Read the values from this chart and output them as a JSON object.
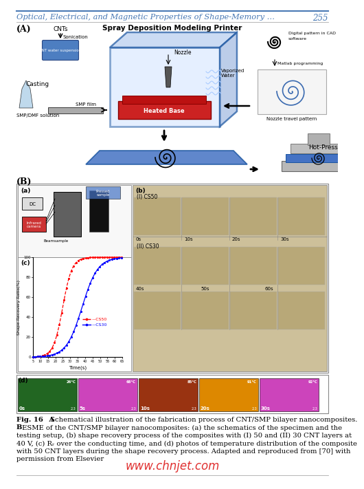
{
  "page_title": "Optical, Electrical, and Magnetic Properties of Shape-Memory …",
  "page_number": "255",
  "watermark": "www.chnjet.com",
  "bg_color": "#ffffff",
  "title_color": "#4a7ab5",
  "page_num_color": "#4a7ab5",
  "watermark_color": "#e03030",
  "caption_lines": [
    {
      "bold": "Fig. 16  A",
      "normal": " Schematical illustration of the fabrication process of CNT/SMP bilayer nanocomposites."
    },
    {
      "bold": "B",
      "normal": " ESME of the CNT/SMP bilayer nanocomposites: (a) the schematics of the specimen and the"
    },
    {
      "bold": "",
      "normal": "testing setup, (b) shape recovery process of the composites with (I) 50 and (II) 30 CNT layers at"
    },
    {
      "bold": "",
      "normal": "40 V, (c) Rᵣ over the conducting time, and (d) photos of temperature distribution of the composite"
    },
    {
      "bold": "",
      "normal": "with 50 CNT layers during the shape recovery process. Adapted and reproduced from [70] with"
    },
    {
      "bold": "",
      "normal": "permission from Elsevier"
    }
  ]
}
